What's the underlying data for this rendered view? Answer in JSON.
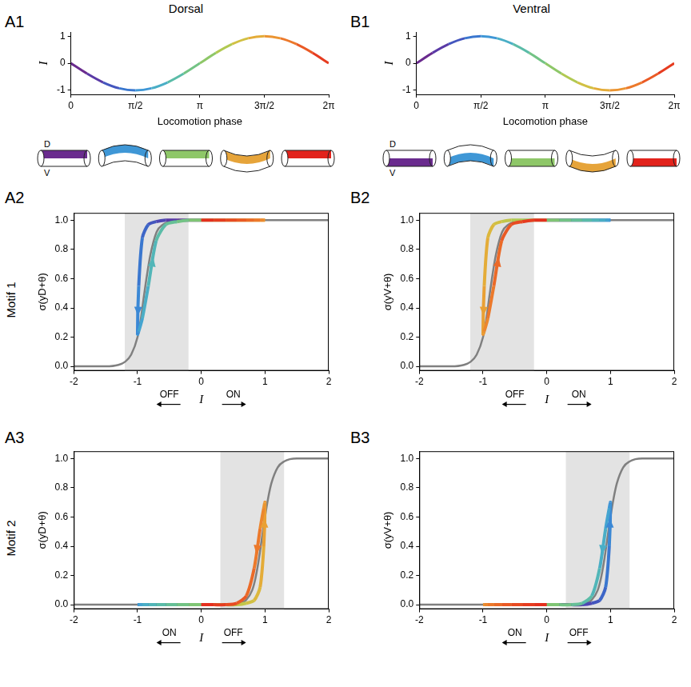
{
  "chart_data": [
    {
      "panel": "A1",
      "type": "line",
      "title": "Dorsal",
      "x_label": "Locomotion phase",
      "y_label": "I",
      "grid": false,
      "x": [
        0,
        0.3927,
        0.7854,
        1.1781,
        1.5708,
        1.9635,
        2.3562,
        2.7489,
        3.1416,
        3.5343,
        3.927,
        4.3197,
        4.7124,
        5.1051,
        5.4978,
        5.8905,
        6.2832
      ],
      "series": [
        {
          "values": [
            0,
            -0.383,
            -0.707,
            -0.924,
            -1,
            -0.924,
            -0.707,
            -0.383,
            0,
            0.383,
            0.707,
            0.924,
            1,
            0.924,
            0.707,
            0.383,
            0
          ],
          "colors": [
            "#6a2b8e",
            "#5a3aa6",
            "#4456be",
            "#3a77cf",
            "#3f97d6",
            "#4aaec6",
            "#5bbca8",
            "#73c385",
            "#8ec768",
            "#b1c952",
            "#d1c043",
            "#e4ac38",
            "#eb9431",
            "#ec792b",
            "#ea5a25",
            "#e63c20",
            "#e2231c"
          ]
        }
      ],
      "xlim": [
        0,
        6.2832
      ],
      "xticks": [
        0,
        {
          "value": 1.5708,
          "label": "π/2"
        },
        {
          "value": 3.1416,
          "label": "π"
        },
        {
          "value": 4.7124,
          "label": "3π/2"
        },
        {
          "value": 6.2832,
          "label": "2π"
        }
      ],
      "ylim": [
        -1.15,
        1.15
      ],
      "yticks": [
        -1,
        0,
        1
      ],
      "cartoons": {
        "labels": [
          "D",
          "V"
        ],
        "colors": [
          "#6a2b8e",
          "#3f97d6",
          "#8ec768",
          "#e6a43a",
          "#e2231c"
        ]
      }
    },
    {
      "panel": "B1",
      "type": "line",
      "title": "Ventral",
      "x_label": "Locomotion phase",
      "y_label": "I",
      "grid": false,
      "x": [
        0,
        0.3927,
        0.7854,
        1.1781,
        1.5708,
        1.9635,
        2.3562,
        2.7489,
        3.1416,
        3.5343,
        3.927,
        4.3197,
        4.7124,
        5.1051,
        5.4978,
        5.8905,
        6.2832
      ],
      "series": [
        {
          "values": [
            0,
            0.383,
            0.707,
            0.924,
            1,
            0.924,
            0.707,
            0.383,
            0,
            -0.383,
            -0.707,
            -0.924,
            -1,
            -0.924,
            -0.707,
            -0.383,
            0
          ],
          "colors": [
            "#6a2b8e",
            "#5a3aa6",
            "#4456be",
            "#3a77cf",
            "#3f97d6",
            "#4aaec6",
            "#5bbca8",
            "#73c385",
            "#8ec768",
            "#b1c952",
            "#d1c043",
            "#e4ac38",
            "#eb9431",
            "#ec792b",
            "#ea5a25",
            "#e63c20",
            "#e2231c"
          ]
        }
      ],
      "xlim": [
        0,
        6.2832
      ],
      "xticks": [
        0,
        {
          "value": 1.5708,
          "label": "π/2"
        },
        {
          "value": 3.1416,
          "label": "π"
        },
        {
          "value": 4.7124,
          "label": "3π/2"
        },
        {
          "value": 6.2832,
          "label": "2π"
        }
      ],
      "ylim": [
        -1.15,
        1.15
      ],
      "yticks": [
        -1,
        0,
        1
      ],
      "cartoons": {
        "labels": [
          "D",
          "V"
        ],
        "colors": [
          "#6a2b8e",
          "#3f97d6",
          "#8ec768",
          "#e6a43a",
          "#e2231c"
        ]
      }
    },
    {
      "panel": "A2",
      "type": "loop",
      "row_label": "Motif 1",
      "x_label": "I",
      "y_label": "σ(yD+θ)",
      "direction_labels": [
        "OFF",
        "ON"
      ],
      "grid": false,
      "shaded_region": [
        -1.2,
        -0.2
      ],
      "series": [
        {
          "color": "#808080",
          "x": [
            -2,
            -1.5,
            -1.3,
            -1.2,
            -1.1,
            -1,
            -0.95,
            -0.9,
            -0.85,
            -0.8,
            -0.7,
            -0.6,
            -0.5,
            -0.3,
            0,
            2
          ],
          "values": [
            0,
            0,
            0.01,
            0.03,
            0.08,
            0.2,
            0.32,
            0.48,
            0.63,
            0.76,
            0.92,
            0.97,
            0.99,
            1,
            1,
            1
          ]
        },
        {
          "x": [
            0,
            -0.195,
            -0.383,
            -0.556,
            -0.707,
            -0.831,
            -0.924,
            -0.981,
            -1,
            -0.981,
            -0.924,
            -0.831,
            -0.707,
            -0.556,
            -0.383,
            -0.195,
            0,
            0.195,
            0.383,
            0.556,
            0.707,
            0.831,
            0.924,
            0.981,
            1,
            0.981,
            0.924,
            0.831,
            0.707,
            0.556,
            0.383,
            0.195,
            0
          ],
          "values": [
            1,
            1,
            1,
            1,
            0.99,
            0.97,
            0.88,
            0.55,
            0.22,
            0.24,
            0.33,
            0.55,
            0.86,
            0.97,
            0.99,
            1,
            1,
            1,
            1,
            1,
            1,
            1,
            1,
            1,
            1,
            1,
            1,
            1,
            1,
            1,
            1,
            1,
            1
          ],
          "colors": [
            "#6a2b8e",
            "#63319a",
            "#5a3aa6",
            "#4e47b3",
            "#4456be",
            "#3d66c7",
            "#3a77cf",
            "#3b88d5",
            "#3f97d6",
            "#44a4d0",
            "#4aaec6",
            "#52b6b8",
            "#5bbca8",
            "#66c097",
            "#73c385",
            "#80c575",
            "#8ec768",
            "#9fc95c",
            "#b1c952",
            "#c2c64a",
            "#d1c043",
            "#dcb73d",
            "#e4ac38",
            "#e9a034",
            "#eb9431",
            "#ec872e",
            "#ec792b",
            "#eb6a28",
            "#ea5a25",
            "#e84b22",
            "#e63c20",
            "#e4301e",
            "#e2231c"
          ]
        }
      ],
      "xlim": [
        -2,
        2
      ],
      "xticks": [
        -2,
        -1,
        0,
        1,
        2
      ],
      "ylim": [
        -0.03,
        1.05
      ],
      "yticks": [
        {
          "value": 0,
          "label": "0.0"
        },
        0.2,
        0.4,
        0.6,
        0.8,
        {
          "value": 1,
          "label": "1.0"
        }
      ]
    },
    {
      "panel": "B2",
      "type": "loop",
      "x_label": "I",
      "y_label": "σ(yV+θ)",
      "direction_labels": [
        "OFF",
        "ON"
      ],
      "grid": false,
      "shaded_region": [
        -1.2,
        -0.2
      ],
      "series": [
        {
          "color": "#808080",
          "x": [
            -2,
            -1.5,
            -1.3,
            -1.2,
            -1.1,
            -1,
            -0.95,
            -0.9,
            -0.85,
            -0.8,
            -0.7,
            -0.6,
            -0.5,
            -0.3,
            0,
            2
          ],
          "values": [
            0,
            0,
            0.01,
            0.03,
            0.08,
            0.2,
            0.32,
            0.48,
            0.63,
            0.76,
            0.92,
            0.97,
            0.99,
            1,
            1,
            1
          ]
        },
        {
          "x": [
            0,
            0.195,
            0.383,
            0.556,
            0.707,
            0.831,
            0.924,
            0.981,
            1,
            0.981,
            0.924,
            0.831,
            0.707,
            0.556,
            0.383,
            0.195,
            0,
            -0.195,
            -0.383,
            -0.556,
            -0.707,
            -0.831,
            -0.924,
            -0.981,
            -1,
            -0.981,
            -0.924,
            -0.831,
            -0.707,
            -0.556,
            -0.383,
            -0.195,
            0
          ],
          "values": [
            1,
            1,
            1,
            1,
            1,
            1,
            1,
            1,
            1,
            1,
            1,
            1,
            1,
            1,
            1,
            1,
            1,
            1,
            1,
            1,
            0.99,
            0.97,
            0.88,
            0.55,
            0.22,
            0.24,
            0.33,
            0.55,
            0.86,
            0.97,
            0.99,
            1,
            1
          ],
          "colors": [
            "#6a2b8e",
            "#63319a",
            "#5a3aa6",
            "#4e47b3",
            "#4456be",
            "#3d66c7",
            "#3a77cf",
            "#3b88d5",
            "#3f97d6",
            "#44a4d0",
            "#4aaec6",
            "#52b6b8",
            "#5bbca8",
            "#66c097",
            "#73c385",
            "#80c575",
            "#8ec768",
            "#9fc95c",
            "#b1c952",
            "#c2c64a",
            "#d1c043",
            "#dcb73d",
            "#e4ac38",
            "#e9a034",
            "#eb9431",
            "#ec872e",
            "#ec792b",
            "#eb6a28",
            "#ea5a25",
            "#e84b22",
            "#e63c20",
            "#e4301e",
            "#e2231c"
          ]
        }
      ],
      "xlim": [
        -2,
        2
      ],
      "xticks": [
        -2,
        -1,
        0,
        1,
        2
      ],
      "ylim": [
        -0.03,
        1.05
      ],
      "yticks": [
        {
          "value": 0,
          "label": "0.0"
        },
        0.2,
        0.4,
        0.6,
        0.8,
        {
          "value": 1,
          "label": "1.0"
        }
      ]
    },
    {
      "panel": "A3",
      "type": "loop",
      "row_label": "Motif 2",
      "x_label": "I",
      "y_label": "σ(yD+θ)",
      "direction_labels": [
        "ON",
        "OFF"
      ],
      "grid": false,
      "shaded_region": [
        0.3,
        1.3
      ],
      "series": [
        {
          "color": "#808080",
          "x": [
            -2,
            0,
            0.5,
            0.6,
            0.7,
            0.8,
            0.85,
            0.9,
            0.95,
            1,
            1.05,
            1.1,
            1.2,
            1.3,
            1.5,
            2
          ],
          "values": [
            0,
            0,
            0,
            0.01,
            0.03,
            0.1,
            0.18,
            0.3,
            0.45,
            0.6,
            0.73,
            0.83,
            0.94,
            0.98,
            1,
            1
          ]
        },
        {
          "x": [
            0,
            -0.195,
            -0.383,
            -0.556,
            -0.707,
            -0.831,
            -0.924,
            -0.981,
            -1,
            -0.981,
            -0.924,
            -0.831,
            -0.707,
            -0.556,
            -0.383,
            -0.195,
            0,
            0.195,
            0.383,
            0.556,
            0.707,
            0.831,
            0.924,
            0.981,
            1,
            0.981,
            0.924,
            0.831,
            0.707,
            0.556,
            0.383,
            0.195,
            0
          ],
          "values": [
            0,
            0,
            0,
            0,
            0,
            0,
            0,
            0,
            0,
            0,
            0,
            0,
            0,
            0,
            0,
            0,
            0,
            0,
            0,
            0,
            0.01,
            0.03,
            0.12,
            0.4,
            0.7,
            0.66,
            0.52,
            0.25,
            0.06,
            0.01,
            0,
            0,
            0
          ],
          "colors": [
            "#6a2b8e",
            "#63319a",
            "#5a3aa6",
            "#4e47b3",
            "#4456be",
            "#3d66c7",
            "#3a77cf",
            "#3b88d5",
            "#3f97d6",
            "#44a4d0",
            "#4aaec6",
            "#52b6b8",
            "#5bbca8",
            "#66c097",
            "#73c385",
            "#80c575",
            "#8ec768",
            "#9fc95c",
            "#b1c952",
            "#c2c64a",
            "#d1c043",
            "#dcb73d",
            "#e4ac38",
            "#e9a034",
            "#eb9431",
            "#ec872e",
            "#ec792b",
            "#eb6a28",
            "#ea5a25",
            "#e84b22",
            "#e63c20",
            "#e4301e",
            "#e2231c"
          ]
        }
      ],
      "xlim": [
        -2,
        2
      ],
      "xticks": [
        -2,
        -1,
        0,
        1,
        2
      ],
      "ylim": [
        -0.03,
        1.05
      ],
      "yticks": [
        {
          "value": 0,
          "label": "0.0"
        },
        0.2,
        0.4,
        0.6,
        0.8,
        {
          "value": 1,
          "label": "1.0"
        }
      ]
    },
    {
      "panel": "B3",
      "type": "loop",
      "x_label": "I",
      "y_label": "σ(yV+θ)",
      "direction_labels": [
        "ON",
        "OFF"
      ],
      "grid": false,
      "shaded_region": [
        0.3,
        1.3
      ],
      "series": [
        {
          "color": "#808080",
          "x": [
            -2,
            0,
            0.5,
            0.6,
            0.7,
            0.8,
            0.85,
            0.9,
            0.95,
            1,
            1.05,
            1.1,
            1.2,
            1.3,
            1.5,
            2
          ],
          "values": [
            0,
            0,
            0,
            0.01,
            0.03,
            0.1,
            0.18,
            0.3,
            0.45,
            0.6,
            0.73,
            0.83,
            0.94,
            0.98,
            1,
            1
          ]
        },
        {
          "x": [
            0,
            0.195,
            0.383,
            0.556,
            0.707,
            0.831,
            0.924,
            0.981,
            1,
            0.981,
            0.924,
            0.831,
            0.707,
            0.556,
            0.383,
            0.195,
            0,
            -0.195,
            -0.383,
            -0.556,
            -0.707,
            -0.831,
            -0.924,
            -0.981,
            -1,
            -0.981,
            -0.924,
            -0.831,
            -0.707,
            -0.556,
            -0.383,
            -0.195,
            0
          ],
          "values": [
            0,
            0,
            0,
            0,
            0.01,
            0.03,
            0.12,
            0.4,
            0.7,
            0.66,
            0.52,
            0.25,
            0.06,
            0.01,
            0,
            0,
            0,
            0,
            0,
            0,
            0,
            0,
            0,
            0,
            0,
            0,
            0,
            0,
            0,
            0,
            0,
            0,
            0
          ],
          "colors": [
            "#6a2b8e",
            "#63319a",
            "#5a3aa6",
            "#4e47b3",
            "#4456be",
            "#3d66c7",
            "#3a77cf",
            "#3b88d5",
            "#3f97d6",
            "#44a4d0",
            "#4aaec6",
            "#52b6b8",
            "#5bbca8",
            "#66c097",
            "#73c385",
            "#80c575",
            "#8ec768",
            "#9fc95c",
            "#b1c952",
            "#c2c64a",
            "#d1c043",
            "#dcb73d",
            "#e4ac38",
            "#e9a034",
            "#eb9431",
            "#ec872e",
            "#ec792b",
            "#eb6a28",
            "#ea5a25",
            "#e84b22",
            "#e63c20",
            "#e4301e",
            "#e2231c"
          ]
        }
      ],
      "xlim": [
        -2,
        2
      ],
      "xticks": [
        -2,
        -1,
        0,
        1,
        2
      ],
      "ylim": [
        -0.03,
        1.05
      ],
      "yticks": [
        {
          "value": 0,
          "label": "0.0"
        },
        0.2,
        0.4,
        0.6,
        0.8,
        {
          "value": 1,
          "label": "1.0"
        }
      ]
    }
  ]
}
